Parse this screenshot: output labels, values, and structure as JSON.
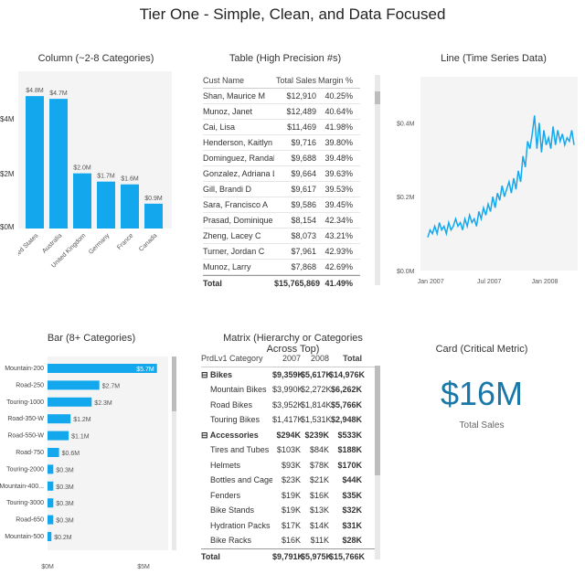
{
  "page_title": "Tier One - Simple, Clean, and Data Focused",
  "colors": {
    "bar": "#13a8ee",
    "line": "#13a8ee",
    "card_value": "#1978a8",
    "panel_bg": "#f4f4f4"
  },
  "column_visual": {
    "title": "Column (~2-8 Categories)",
    "y_ticks": [
      "$4M",
      "$2M",
      "$0M"
    ],
    "chart_data": {
      "type": "bar",
      "categories": [
        "United States",
        "Australia",
        "United Kingdom",
        "Germany",
        "France",
        "Canada"
      ],
      "values": [
        4.8,
        4.7,
        2.0,
        1.7,
        1.6,
        0.9
      ],
      "value_labels": [
        "$4.8M",
        "$4.7M",
        "$2.0M",
        "$1.7M",
        "$1.6M",
        "$0.9M"
      ],
      "ylim": [
        0,
        5.5
      ]
    }
  },
  "table_visual": {
    "title": "Table (High Precision #s)",
    "headers": [
      "Cust Name",
      "Total Sales",
      "Margin %"
    ],
    "rows": [
      [
        "Shan, Maurice M",
        "$12,910",
        "40.25%"
      ],
      [
        "Munoz, Janet",
        "$12,489",
        "40.64%"
      ],
      [
        "Cai, Lisa",
        "$11,469",
        "41.98%"
      ],
      [
        "Henderson, Kaitlyn J",
        "$9,716",
        "39.80%"
      ],
      [
        "Dominguez, Randall M",
        "$9,688",
        "39.48%"
      ],
      [
        "Gonzalez, Adriana L",
        "$9,664",
        "39.63%"
      ],
      [
        "Gill, Brandi D",
        "$9,617",
        "39.53%"
      ],
      [
        "Sara, Francisco A",
        "$9,586",
        "39.45%"
      ],
      [
        "Prasad, Dominique L",
        "$8,154",
        "42.34%"
      ],
      [
        "Zheng, Lacey C",
        "$8,073",
        "43.21%"
      ],
      [
        "Turner, Jordan C",
        "$7,961",
        "42.93%"
      ],
      [
        "Munoz, Larry",
        "$7,868",
        "42.69%"
      ]
    ],
    "total": [
      "Total",
      "$15,765,869",
      "41.49%"
    ]
  },
  "line_visual": {
    "title": "Line (Time Series Data)",
    "chart_data": {
      "type": "line",
      "x_ticks": [
        "Jan 2007",
        "Jul 2007",
        "Jan 2008"
      ],
      "y_ticks": [
        "$0.4M",
        "$0.2M",
        "$0.0M"
      ],
      "ylim": [
        0,
        0.5
      ],
      "values": [
        0.09,
        0.11,
        0.1,
        0.12,
        0.1,
        0.13,
        0.11,
        0.12,
        0.1,
        0.13,
        0.11,
        0.12,
        0.14,
        0.12,
        0.13,
        0.11,
        0.14,
        0.12,
        0.15,
        0.13,
        0.14,
        0.12,
        0.16,
        0.14,
        0.17,
        0.15,
        0.18,
        0.16,
        0.2,
        0.17,
        0.21,
        0.19,
        0.23,
        0.2,
        0.22,
        0.24,
        0.21,
        0.25,
        0.22,
        0.27,
        0.24,
        0.31,
        0.28,
        0.35,
        0.33,
        0.37,
        0.42,
        0.33,
        0.4,
        0.32,
        0.38,
        0.34,
        0.36,
        0.33,
        0.39,
        0.34,
        0.38,
        0.35,
        0.37,
        0.34,
        0.36,
        0.35,
        0.38,
        0.34
      ]
    }
  },
  "bar_visual": {
    "title": "Bar (8+ Categories)",
    "x_ticks": [
      "$0M",
      "$5M"
    ],
    "chart_data": {
      "type": "bar",
      "categories": [
        "Mountain-200",
        "Road-250",
        "Touring-1000",
        "Road-350-W",
        "Road-550-W",
        "Road-750",
        "Touring-2000",
        "Mountain-400...",
        "Touring-3000",
        "Road-650",
        "Mountain-500"
      ],
      "values": [
        5.7,
        2.7,
        2.3,
        1.2,
        1.1,
        0.6,
        0.3,
        0.3,
        0.3,
        0.3,
        0.2
      ],
      "value_labels": [
        "$5.7M",
        "$2.7M",
        "$2.3M",
        "$1.2M",
        "$1.1M",
        "$0.6M",
        "$0.3M",
        "$0.3M",
        "$0.3M",
        "$0.3M",
        "$0.2M"
      ],
      "xlim": [
        0,
        6
      ]
    }
  },
  "matrix_visual": {
    "title": "Matrix (Hierarchy or Categories Across Top)",
    "headers": [
      "PrdLv1 Category",
      "2007",
      "2008",
      "Total"
    ],
    "rows": [
      {
        "label": "Bikes",
        "group": true,
        "v": [
          "$9,359K",
          "$5,617K",
          "$14,976K"
        ]
      },
      {
        "label": "Mountain Bikes",
        "group": false,
        "v": [
          "$3,990K",
          "$2,272K",
          "$6,262K"
        ]
      },
      {
        "label": "Road Bikes",
        "group": false,
        "v": [
          "$3,952K",
          "$1,814K",
          "$5,766K"
        ]
      },
      {
        "label": "Touring Bikes",
        "group": false,
        "v": [
          "$1,417K",
          "$1,531K",
          "$2,948K"
        ]
      },
      {
        "label": "Accessories",
        "group": true,
        "v": [
          "$294K",
          "$239K",
          "$533K"
        ]
      },
      {
        "label": "Tires and Tubes",
        "group": false,
        "v": [
          "$103K",
          "$84K",
          "$188K"
        ]
      },
      {
        "label": "Helmets",
        "group": false,
        "v": [
          "$93K",
          "$78K",
          "$170K"
        ]
      },
      {
        "label": "Bottles and Cages",
        "group": false,
        "v": [
          "$23K",
          "$21K",
          "$44K"
        ]
      },
      {
        "label": "Fenders",
        "group": false,
        "v": [
          "$19K",
          "$16K",
          "$35K"
        ]
      },
      {
        "label": "Bike Stands",
        "group": false,
        "v": [
          "$19K",
          "$13K",
          "$32K"
        ]
      },
      {
        "label": "Hydration Packs",
        "group": false,
        "v": [
          "$17K",
          "$14K",
          "$31K"
        ]
      },
      {
        "label": "Bike Racks",
        "group": false,
        "v": [
          "$16K",
          "$11K",
          "$28K"
        ]
      }
    ],
    "total": [
      "Total",
      "$9,791K",
      "$5,975K",
      "$15,766K"
    ]
  },
  "card_visual": {
    "title": "Card (Critical Metric)",
    "value": "$16M",
    "label": "Total Sales"
  }
}
